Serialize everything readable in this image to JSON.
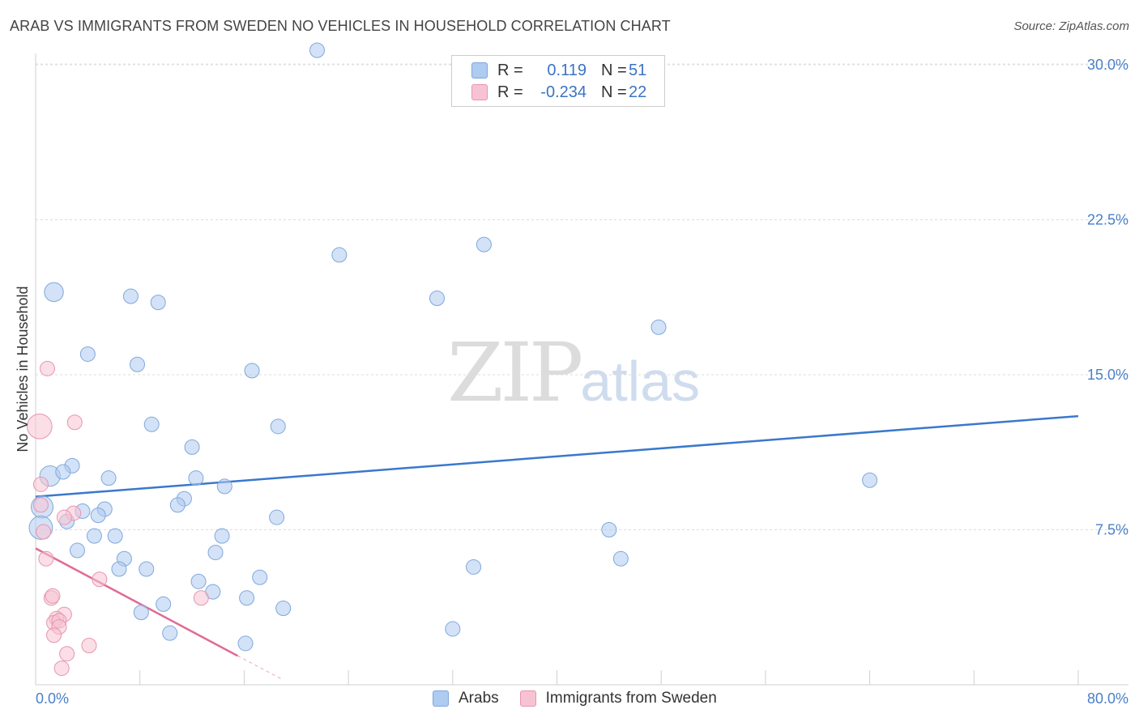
{
  "title": "ARAB VS IMMIGRANTS FROM SWEDEN NO VEHICLES IN HOUSEHOLD CORRELATION CHART",
  "source": "Source: ZipAtlas.com",
  "watermark": {
    "zip": "ZIP",
    "atlas": "atlas"
  },
  "legend": {
    "r_label": "R =",
    "n_label": "N =",
    "series": [
      {
        "name": "Arabs",
        "r": "0.119",
        "n": "51",
        "color": "#aecbf0",
        "stroke": "#7fa8dc"
      },
      {
        "name": "Immigrants from Sweden",
        "r": "-0.234",
        "n": "22",
        "color": "#f7c3d2",
        "stroke": "#e596b0"
      }
    ]
  },
  "chart_data": {
    "type": "scatter",
    "title": "ARAB VS IMMIGRANTS FROM SWEDEN NO VEHICLES IN HOUSEHOLD CORRELATION CHART",
    "xlabel": "",
    "ylabel": "No Vehicles in Household",
    "xlim": [
      0,
      80
    ],
    "ylim": [
      0,
      30
    ],
    "x_tick_labels": [
      "0.0%",
      "80.0%"
    ],
    "y_ticks": [
      7.5,
      15.0,
      22.5,
      30.0
    ],
    "y_tick_labels": [
      "7.5%",
      "15.0%",
      "22.5%",
      "30.0%"
    ],
    "series": [
      {
        "name": "Arabs",
        "color": "#aecbf0",
        "stroke": "#7fa8dc",
        "trend": {
          "x0": 0,
          "y0": 9.1,
          "x1": 80,
          "y1": 13.0,
          "color": "#3a78cc"
        },
        "points": [
          {
            "x": 21.6,
            "y": 30.7,
            "s": 1
          },
          {
            "x": 34.4,
            "y": 21.3,
            "s": 1
          },
          {
            "x": 23.3,
            "y": 20.8,
            "s": 1
          },
          {
            "x": 1.4,
            "y": 19.0,
            "s": 1.3
          },
          {
            "x": 7.3,
            "y": 18.8,
            "s": 1
          },
          {
            "x": 9.4,
            "y": 18.5,
            "s": 1
          },
          {
            "x": 30.8,
            "y": 18.7,
            "s": 1
          },
          {
            "x": 47.8,
            "y": 17.3,
            "s": 1
          },
          {
            "x": 4.0,
            "y": 16.0,
            "s": 1
          },
          {
            "x": 7.8,
            "y": 15.5,
            "s": 1
          },
          {
            "x": 16.6,
            "y": 15.2,
            "s": 1
          },
          {
            "x": 8.9,
            "y": 12.6,
            "s": 1
          },
          {
            "x": 18.6,
            "y": 12.5,
            "s": 1
          },
          {
            "x": 12.0,
            "y": 11.5,
            "s": 1
          },
          {
            "x": 2.8,
            "y": 10.6,
            "s": 1
          },
          {
            "x": 1.1,
            "y": 10.1,
            "s": 1.4
          },
          {
            "x": 2.1,
            "y": 10.3,
            "s": 1
          },
          {
            "x": 5.6,
            "y": 10.0,
            "s": 1
          },
          {
            "x": 12.3,
            "y": 10.0,
            "s": 1
          },
          {
            "x": 64.0,
            "y": 9.9,
            "s": 1
          },
          {
            "x": 14.5,
            "y": 9.6,
            "s": 1
          },
          {
            "x": 11.4,
            "y": 9.0,
            "s": 1
          },
          {
            "x": 10.9,
            "y": 8.7,
            "s": 1
          },
          {
            "x": 0.5,
            "y": 8.6,
            "s": 1.5
          },
          {
            "x": 3.6,
            "y": 8.4,
            "s": 1
          },
          {
            "x": 5.3,
            "y": 8.5,
            "s": 1
          },
          {
            "x": 4.8,
            "y": 8.2,
            "s": 1
          },
          {
            "x": 18.5,
            "y": 8.1,
            "s": 1
          },
          {
            "x": 2.4,
            "y": 7.9,
            "s": 1
          },
          {
            "x": 0.4,
            "y": 7.6,
            "s": 1.6
          },
          {
            "x": 44.0,
            "y": 7.5,
            "s": 1
          },
          {
            "x": 4.5,
            "y": 7.2,
            "s": 1
          },
          {
            "x": 6.1,
            "y": 7.2,
            "s": 1
          },
          {
            "x": 14.3,
            "y": 7.2,
            "s": 1
          },
          {
            "x": 3.2,
            "y": 6.5,
            "s": 1
          },
          {
            "x": 13.8,
            "y": 6.4,
            "s": 1
          },
          {
            "x": 6.8,
            "y": 6.1,
            "s": 1
          },
          {
            "x": 44.9,
            "y": 6.1,
            "s": 1
          },
          {
            "x": 6.4,
            "y": 5.6,
            "s": 1
          },
          {
            "x": 8.5,
            "y": 5.6,
            "s": 1
          },
          {
            "x": 33.6,
            "y": 5.7,
            "s": 1
          },
          {
            "x": 17.2,
            "y": 5.2,
            "s": 1
          },
          {
            "x": 12.5,
            "y": 5.0,
            "s": 1
          },
          {
            "x": 13.6,
            "y": 4.5,
            "s": 1
          },
          {
            "x": 16.2,
            "y": 4.2,
            "s": 1
          },
          {
            "x": 9.8,
            "y": 3.9,
            "s": 1
          },
          {
            "x": 19.0,
            "y": 3.7,
            "s": 1
          },
          {
            "x": 8.1,
            "y": 3.5,
            "s": 1
          },
          {
            "x": 32.0,
            "y": 2.7,
            "s": 1
          },
          {
            "x": 10.3,
            "y": 2.5,
            "s": 1
          },
          {
            "x": 16.1,
            "y": 2.0,
            "s": 1
          }
        ]
      },
      {
        "name": "Immigrants from Sweden",
        "color": "#f7c3d2",
        "stroke": "#e596b0",
        "trend": {
          "x0": 0,
          "y0": 6.6,
          "x1": 15.5,
          "y1": 1.4,
          "dash_x1": 18.8,
          "dash_y1": 0.3,
          "color": "#e06b96"
        },
        "points": [
          {
            "x": 0.3,
            "y": 12.5,
            "s": 1.7
          },
          {
            "x": 0.9,
            "y": 15.3,
            "s": 1
          },
          {
            "x": 3.0,
            "y": 12.7,
            "s": 1
          },
          {
            "x": 0.4,
            "y": 9.7,
            "s": 1
          },
          {
            "x": 0.4,
            "y": 8.7,
            "s": 1
          },
          {
            "x": 2.9,
            "y": 8.3,
            "s": 1
          },
          {
            "x": 2.2,
            "y": 8.1,
            "s": 1
          },
          {
            "x": 0.6,
            "y": 7.4,
            "s": 1
          },
          {
            "x": 0.8,
            "y": 6.1,
            "s": 1
          },
          {
            "x": 4.9,
            "y": 5.1,
            "s": 1
          },
          {
            "x": 1.2,
            "y": 4.2,
            "s": 1
          },
          {
            "x": 12.7,
            "y": 4.2,
            "s": 1
          },
          {
            "x": 1.3,
            "y": 4.3,
            "s": 1
          },
          {
            "x": 2.2,
            "y": 3.4,
            "s": 1
          },
          {
            "x": 1.6,
            "y": 3.2,
            "s": 1
          },
          {
            "x": 1.4,
            "y": 3.0,
            "s": 1
          },
          {
            "x": 1.8,
            "y": 3.1,
            "s": 1
          },
          {
            "x": 1.8,
            "y": 2.8,
            "s": 1
          },
          {
            "x": 1.4,
            "y": 2.4,
            "s": 1
          },
          {
            "x": 4.1,
            "y": 1.9,
            "s": 1
          },
          {
            "x": 2.4,
            "y": 1.5,
            "s": 1
          },
          {
            "x": 2.0,
            "y": 0.8,
            "s": 1
          }
        ]
      }
    ]
  }
}
